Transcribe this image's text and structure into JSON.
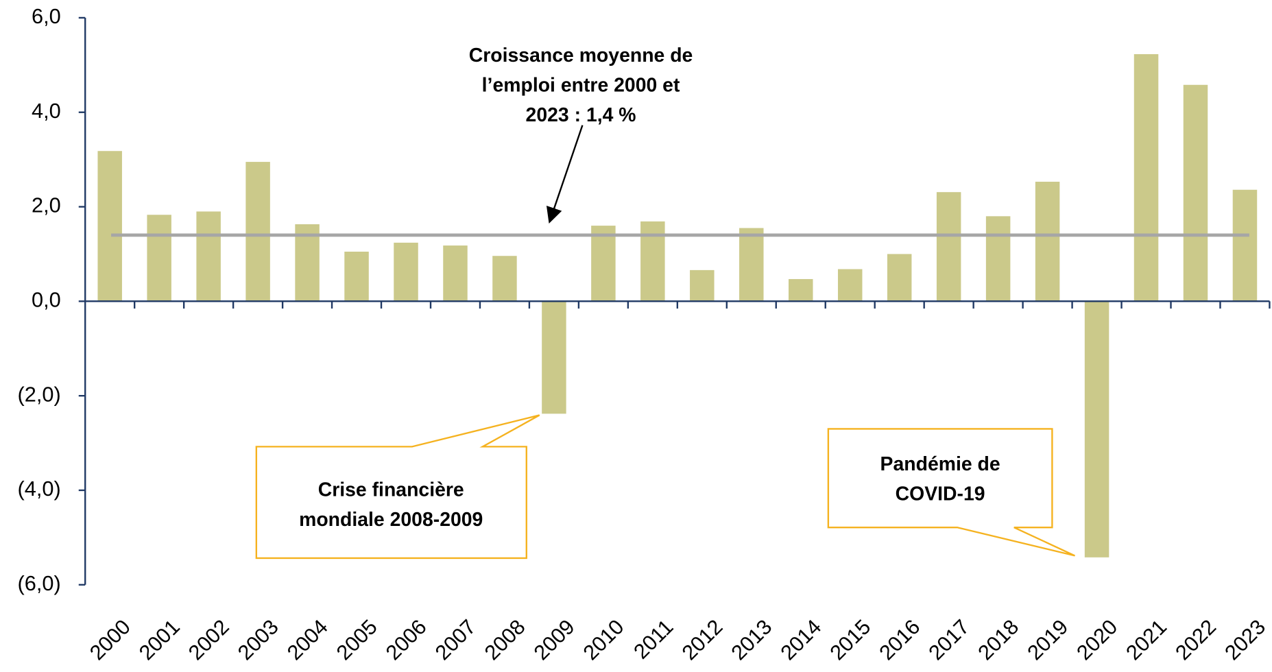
{
  "chart_data": {
    "type": "bar",
    "categories": [
      "2000",
      "2001",
      "2002",
      "2003",
      "2004",
      "2005",
      "2006",
      "2007",
      "2008",
      "2009",
      "2010",
      "2011",
      "2012",
      "2013",
      "2014",
      "2015",
      "2016",
      "2017",
      "2018",
      "2019",
      "2020",
      "2021",
      "2022",
      "2023"
    ],
    "values": [
      3.18,
      1.83,
      1.9,
      2.95,
      1.63,
      1.05,
      1.24,
      1.18,
      0.96,
      -2.38,
      1.6,
      1.69,
      0.66,
      1.55,
      0.47,
      0.68,
      1.0,
      2.31,
      1.8,
      2.53,
      -5.42,
      5.23,
      4.58,
      2.36
    ],
    "color": "#cbc98a",
    "ylim": [
      -6,
      6
    ],
    "yticks": [
      {
        "value": 6,
        "label": "6,0"
      },
      {
        "value": 4,
        "label": "4,0"
      },
      {
        "value": 2,
        "label": "2,0"
      },
      {
        "value": 0,
        "label": "0,0"
      },
      {
        "value": -2,
        "label": "(2,0)"
      },
      {
        "value": -4,
        "label": "(4,0)"
      },
      {
        "value": -6,
        "label": "(6,0)"
      }
    ],
    "average": {
      "value": 1.4,
      "color": "#a6a6a6"
    },
    "annotations": [
      {
        "lines": [
          "Croissance moyenne de",
          "l’emploi entre 2000 et",
          "2023 : 1,4 %"
        ]
      },
      {
        "lines": [
          "Crise financière",
          "mondiale 2008-2009"
        ]
      },
      {
        "lines": [
          "Pandémie de",
          "COVID-19"
        ]
      }
    ]
  }
}
